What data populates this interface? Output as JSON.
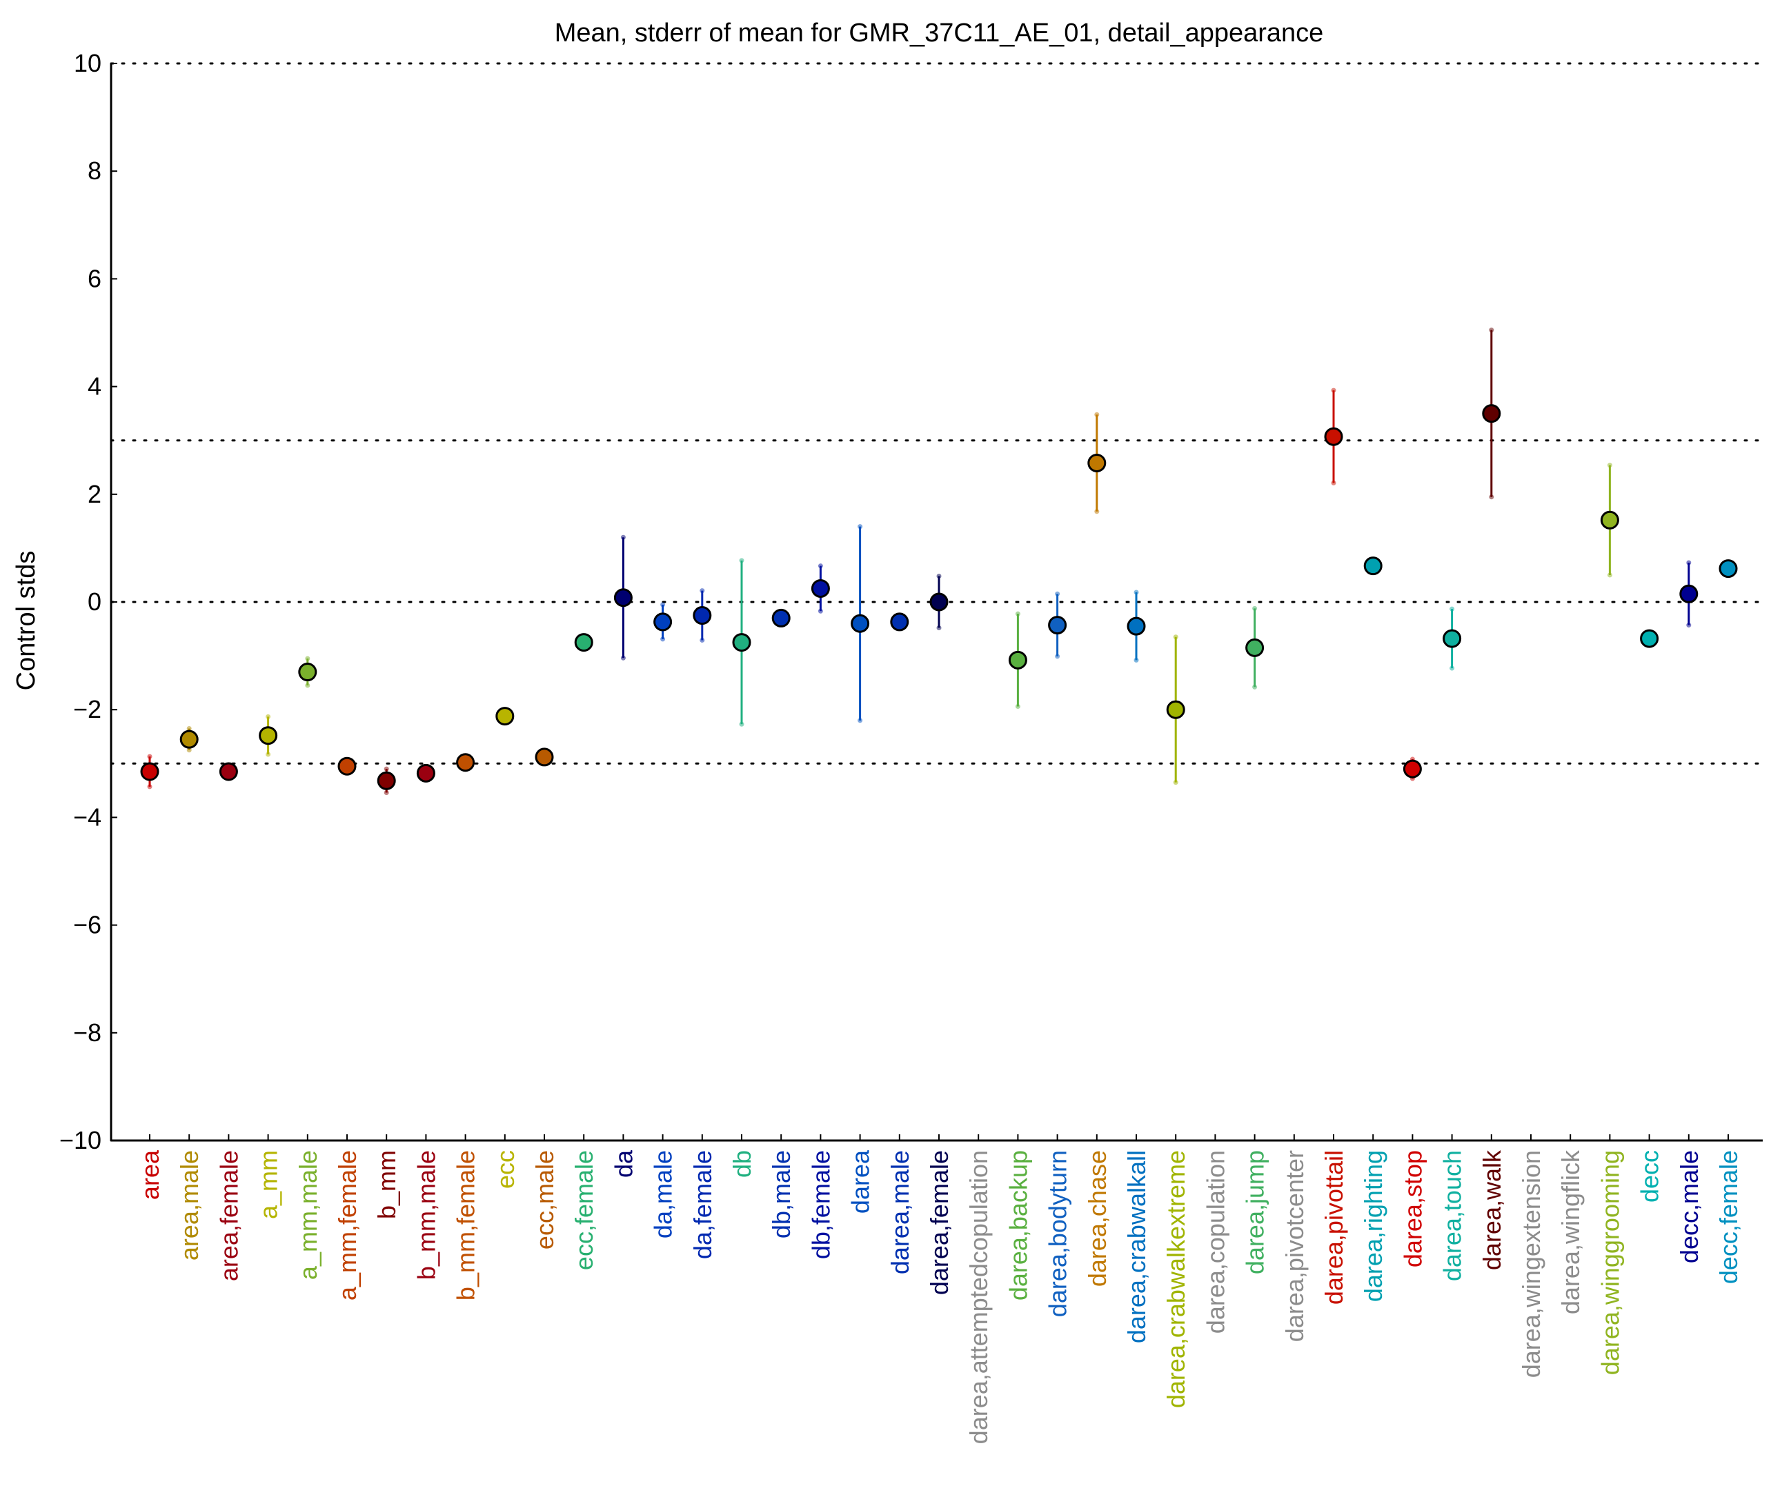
{
  "chart_data": {
    "type": "scatter",
    "title": "Mean, stderr of mean for GMR_37C11_AE_01, detail_appearance",
    "xlabel": "",
    "ylabel": "Control stds",
    "ylim": [
      -10,
      10
    ],
    "yticks": [
      -10,
      -8,
      -6,
      -4,
      -2,
      0,
      2,
      4,
      6,
      8,
      10
    ],
    "ytick_labels": [
      "−10",
      "−8",
      "−6",
      "−4",
      "−2",
      "0",
      "2",
      "4",
      "6",
      "8",
      "10"
    ],
    "reference_lines": [
      -10,
      -3,
      0,
      3,
      10
    ],
    "reference_line_style": "dotted",
    "grid": false,
    "points": [
      {
        "label": "area",
        "mean": -3.15,
        "err": 0.28,
        "color": "#c80000"
      },
      {
        "label": "area,male",
        "mean": -2.55,
        "err": 0.2,
        "color": "#b08a00"
      },
      {
        "label": "area,female",
        "mean": -3.15,
        "err": 0.1,
        "color": "#9a0010"
      },
      {
        "label": "a_mm",
        "mean": -2.48,
        "err": 0.35,
        "color": "#b4b400"
      },
      {
        "label": "a_mm,male",
        "mean": -1.3,
        "err": 0.25,
        "color": "#7ab02c"
      },
      {
        "label": "a_mm,female",
        "mean": -3.05,
        "err": 0.12,
        "color": "#c04000"
      },
      {
        "label": "b_mm",
        "mean": -3.32,
        "err": 0.22,
        "color": "#800000"
      },
      {
        "label": "b_mm,male",
        "mean": -3.18,
        "err": 0.1,
        "color": "#9a0010"
      },
      {
        "label": "b_mm,female",
        "mean": -2.98,
        "err": 0.1,
        "color": "#c05000"
      },
      {
        "label": "ecc",
        "mean": -2.12,
        "err": 0.1,
        "color": "#b8b400"
      },
      {
        "label": "ecc,male",
        "mean": -2.88,
        "err": 0.1,
        "color": "#b85a00"
      },
      {
        "label": "ecc,female",
        "mean": -0.75,
        "err": 0.1,
        "color": "#28b070"
      },
      {
        "label": "da",
        "mean": 0.08,
        "err": 1.12,
        "color": "#000070"
      },
      {
        "label": "da,male",
        "mean": -0.37,
        "err": 0.32,
        "color": "#0040c0"
      },
      {
        "label": "da,female",
        "mean": -0.25,
        "err": 0.46,
        "color": "#0028b0"
      },
      {
        "label": "db",
        "mean": -0.75,
        "err": 1.52,
        "color": "#20b080"
      },
      {
        "label": "db,male",
        "mean": -0.3,
        "err": 0.1,
        "color": "#0030b0"
      },
      {
        "label": "db,female",
        "mean": 0.25,
        "err": 0.42,
        "color": "#0010a0"
      },
      {
        "label": "darea",
        "mean": -0.4,
        "err": 1.8,
        "color": "#0050c0"
      },
      {
        "label": "darea,male",
        "mean": -0.37,
        "err": 0.1,
        "color": "#0030b0"
      },
      {
        "label": "darea,female",
        "mean": 0.0,
        "err": 0.48,
        "color": "#000050"
      },
      {
        "label": "darea,attemptedcopulation",
        "mean": null,
        "err": null,
        "color": "#8c8c8c"
      },
      {
        "label": "darea,backup",
        "mean": -1.08,
        "err": 0.86,
        "color": "#5ab040"
      },
      {
        "label": "darea,bodyturn",
        "mean": -0.43,
        "err": 0.58,
        "color": "#1060c0"
      },
      {
        "label": "darea,chase",
        "mean": 2.58,
        "err": 0.9,
        "color": "#c07800"
      },
      {
        "label": "darea,crabwalkall",
        "mean": -0.45,
        "err": 0.63,
        "color": "#0070c0"
      },
      {
        "label": "darea,crabwalkextreme",
        "mean": -2.0,
        "err": 1.35,
        "color": "#a0b400"
      },
      {
        "label": "darea,copulation",
        "mean": null,
        "err": null,
        "color": "#8c8c8c"
      },
      {
        "label": "darea,jump",
        "mean": -0.85,
        "err": 0.73,
        "color": "#40b060"
      },
      {
        "label": "darea,pivotcenter",
        "mean": null,
        "err": null,
        "color": "#8c8c8c"
      },
      {
        "label": "darea,pivottail",
        "mean": 3.07,
        "err": 0.86,
        "color": "#c81000"
      },
      {
        "label": "darea,righting",
        "mean": 0.67,
        "err": 0.1,
        "color": "#00a0b0"
      },
      {
        "label": "darea,stop",
        "mean": -3.1,
        "err": 0.18,
        "color": "#d00000"
      },
      {
        "label": "darea,touch",
        "mean": -0.68,
        "err": 0.55,
        "color": "#10b0a0"
      },
      {
        "label": "darea,walk",
        "mean": 3.5,
        "err": 1.55,
        "color": "#600000"
      },
      {
        "label": "darea,wingextension",
        "mean": null,
        "err": null,
        "color": "#8c8c8c"
      },
      {
        "label": "darea,wingflick",
        "mean": null,
        "err": null,
        "color": "#8c8c8c"
      },
      {
        "label": "darea,winggrooming",
        "mean": 1.52,
        "err": 1.02,
        "color": "#90b420"
      },
      {
        "label": "decc",
        "mean": -0.68,
        "err": 0.1,
        "color": "#00b0b0"
      },
      {
        "label": "decc,male",
        "mean": 0.15,
        "err": 0.58,
        "color": "#000090"
      },
      {
        "label": "decc,female",
        "mean": 0.62,
        "err": 0.1,
        "color": "#0090c0"
      }
    ]
  }
}
